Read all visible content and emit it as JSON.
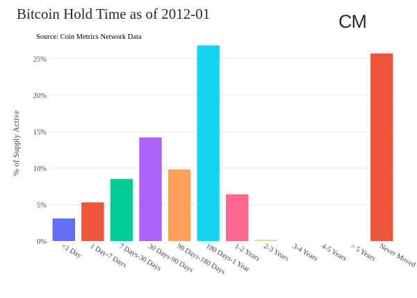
{
  "chart_data": {
    "type": "bar",
    "title": "Bitcoin Hold Time as of 2012-01",
    "subtitle": "Source: Coin Metrics Network Data",
    "ylabel": "% of Supply Active",
    "xlabel": "",
    "ylim": [
      0,
      27.5
    ],
    "yticks": [
      0,
      5,
      10,
      15,
      20,
      25
    ],
    "ytick_labels": [
      "0%",
      "5%",
      "10%",
      "15%",
      "20%",
      "25%"
    ],
    "grid": true,
    "categories": [
      "<1 Day",
      "1 Day-7 Days",
      "7 Days-30 Days",
      "30 Days-90 Days",
      "90 Days-180 Days",
      "180 Days-1 Year",
      "1-2 Years",
      "2-3 Years",
      "3-4 Years",
      "4-5 Years",
      "> 5 Years",
      "Never Moved"
    ],
    "values": [
      3.1,
      5.3,
      8.5,
      14.2,
      9.8,
      26.8,
      6.4,
      0.15,
      0,
      0,
      0,
      25.7
    ],
    "colors": [
      "#636efa",
      "#ef553b",
      "#00cc96",
      "#ab63fa",
      "#ffa15a",
      "#19d3f3",
      "#ff6692",
      "#b6e880",
      "#ff97ff",
      "#fecb52",
      "#636efa",
      "#ef553b"
    ]
  },
  "logo": {
    "text": "CM"
  }
}
